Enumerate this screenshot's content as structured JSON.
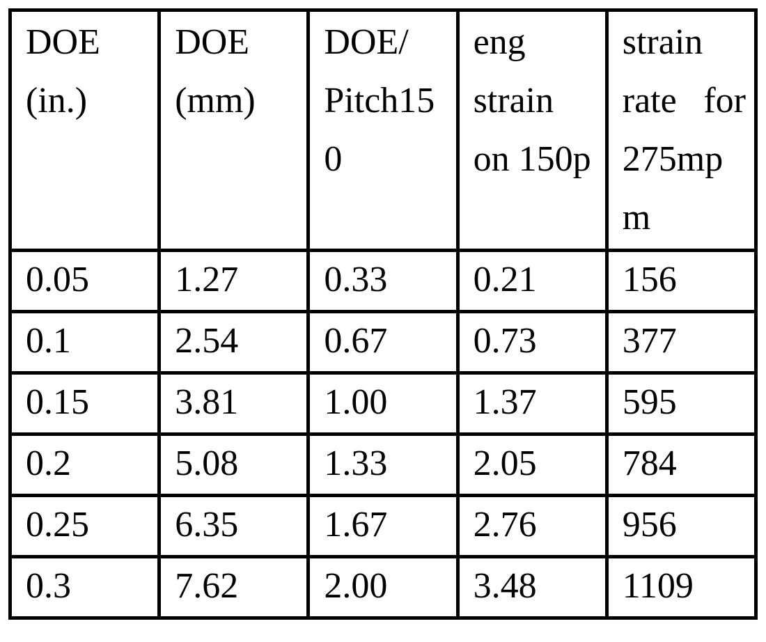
{
  "table": {
    "name": "doe-strain-table",
    "background_color": "#ffffff",
    "border_color": "#000000",
    "text_color": "#000000",
    "columns": [
      {
        "label": "DOE (in.)",
        "lines": [
          "DOE",
          "(in.)"
        ]
      },
      {
        "label": "DOE (mm)",
        "lines": [
          "DOE",
          "(mm)"
        ]
      },
      {
        "label": "DOE/Pitch150",
        "lines": [
          "DOE/",
          "Pitch15",
          "0"
        ]
      },
      {
        "label": "eng strain on 150p",
        "lines": [
          "eng",
          "strain",
          "on 150p"
        ]
      },
      {
        "label": "strain rate for 275mpm",
        "lines": [
          "strain",
          "rate for",
          "275mp",
          "m"
        ]
      }
    ],
    "rows": [
      [
        "0.05",
        "1.27",
        "0.33",
        "0.21",
        "156"
      ],
      [
        "0.1",
        "2.54",
        "0.67",
        "0.73",
        "377"
      ],
      [
        "0.15",
        "3.81",
        "1.00",
        "1.37",
        "595"
      ],
      [
        "0.2",
        "5.08",
        "1.33",
        "2.05",
        "784"
      ],
      [
        "0.25",
        "6.35",
        "1.67",
        "2.76",
        "956"
      ],
      [
        "0.3",
        "7.62",
        "2.00",
        "3.48",
        "1109"
      ]
    ]
  }
}
